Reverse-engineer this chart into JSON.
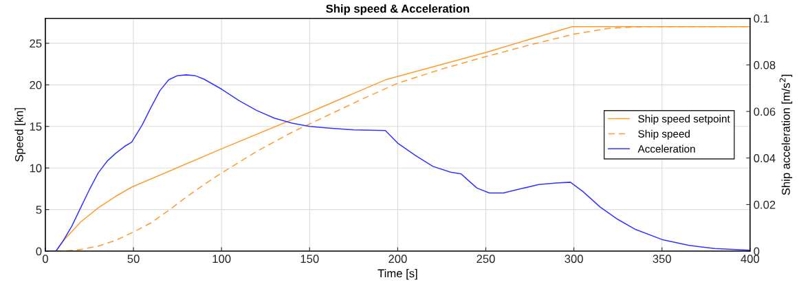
{
  "chart_data": {
    "type": "line",
    "title": "Ship speed & Acceleration",
    "xlabel": "Time [s]",
    "ylabel": "Speed [kn]",
    "y2label": "Ship acceleration [m/s$^{2}$]",
    "xlim": [
      0,
      400
    ],
    "xticks": [
      0,
      50,
      100,
      150,
      200,
      250,
      300,
      350,
      400
    ],
    "ylim": [
      0,
      28
    ],
    "yticks": [
      0,
      5,
      10,
      15,
      20,
      25
    ],
    "y2lim": [
      0,
      0.1
    ],
    "y2ticks": [
      0,
      0.02,
      0.04,
      0.06,
      0.08,
      0.1
    ],
    "grid": true,
    "legend": "right",
    "series": [
      {
        "name": "Ship speed setpoint",
        "color": "#ff9a2e",
        "line_style": "solid",
        "x": [
          0,
          6,
          10,
          20,
          30,
          40,
          49,
          100,
          150,
          193,
          250,
          299,
          400
        ],
        "values": [
          0,
          0,
          1.2,
          3.5,
          5.2,
          6.6,
          7.7,
          12.3,
          16.7,
          20.6,
          23.9,
          27.0,
          27.0
        ]
      },
      {
        "name": "Ship speed",
        "color": "#ff9a2e",
        "line_style": "dashed",
        "x": [
          0,
          10,
          20,
          30,
          40,
          50,
          60,
          70,
          80,
          90,
          100,
          120,
          140,
          160,
          180,
          200,
          225,
          250,
          275,
          300,
          320,
          340,
          400
        ],
        "values": [
          0,
          0,
          0.2,
          0.6,
          1.3,
          2.3,
          3.4,
          4.9,
          6.5,
          8.0,
          9.4,
          12.0,
          14.3,
          16.3,
          18.3,
          20.2,
          21.9,
          23.4,
          24.8,
          26.1,
          26.8,
          27.0,
          27.0
        ]
      },
      {
        "name": "Acceleration",
        "color": "#3333ff",
        "line_style": "solid",
        "axis": "y2",
        "x": [
          0,
          6,
          10,
          15,
          20,
          25,
          30,
          35,
          40,
          45,
          49,
          55,
          60,
          65,
          70,
          75,
          80,
          85,
          90,
          100,
          110,
          120,
          130,
          140,
          150,
          160,
          175,
          193,
          200,
          210,
          220,
          230,
          236,
          240,
          245,
          252,
          260,
          270,
          280,
          290,
          298,
          305,
          315,
          325,
          335,
          350,
          365,
          380,
          400
        ],
        "values": [
          0,
          0,
          0.0043,
          0.0107,
          0.0186,
          0.0264,
          0.0336,
          0.0386,
          0.0421,
          0.045,
          0.0468,
          0.0543,
          0.0618,
          0.0689,
          0.0736,
          0.0754,
          0.0757,
          0.0754,
          0.0739,
          0.0696,
          0.0646,
          0.0604,
          0.0571,
          0.055,
          0.0536,
          0.0529,
          0.0521,
          0.0518,
          0.0464,
          0.0411,
          0.0364,
          0.0339,
          0.0332,
          0.0304,
          0.0271,
          0.025,
          0.025,
          0.0268,
          0.0286,
          0.0293,
          0.0296,
          0.0257,
          0.0189,
          0.0136,
          0.0093,
          0.005,
          0.0025,
          0.0011,
          0.0004
        ]
      }
    ]
  }
}
